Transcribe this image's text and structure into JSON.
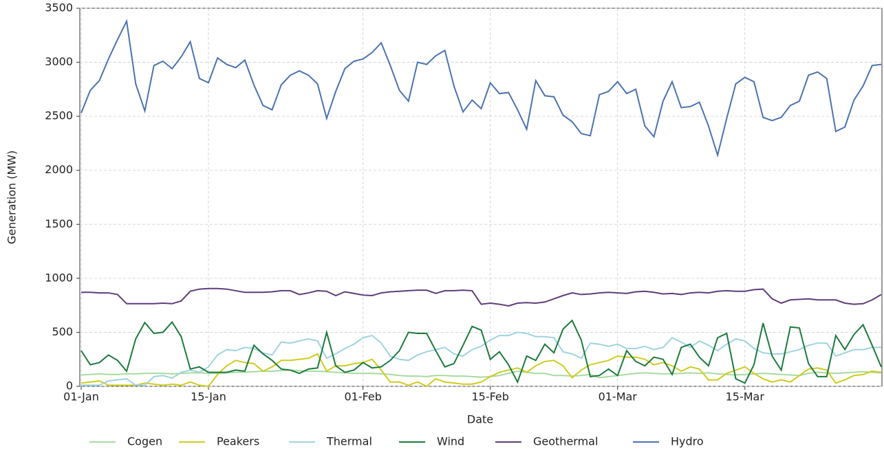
{
  "chart_data": {
    "type": "line",
    "x_label": "Date",
    "y_label": "Generation (MW)",
    "x": [
      "01-Jan",
      null,
      null,
      null,
      null,
      null,
      null,
      null,
      null,
      null,
      null,
      null,
      null,
      null,
      "15-Jan",
      null,
      null,
      null,
      null,
      null,
      null,
      null,
      null,
      null,
      null,
      null,
      null,
      null,
      null,
      null,
      null,
      "01-Feb",
      null,
      null,
      null,
      null,
      null,
      null,
      null,
      null,
      null,
      null,
      null,
      null,
      null,
      "15-Feb",
      null,
      null,
      null,
      null,
      null,
      null,
      null,
      null,
      null,
      null,
      null,
      null,
      null,
      "01-Mar",
      null,
      null,
      null,
      null,
      null,
      null,
      null,
      null,
      null,
      null,
      null,
      null,
      null,
      "15-Mar",
      null,
      null,
      null,
      null,
      null,
      null,
      null,
      null,
      null,
      null,
      null,
      null,
      null,
      null,
      null
    ],
    "ylim": [
      0,
      3500
    ],
    "yticks": [
      0,
      500,
      1000,
      1500,
      2000,
      2500,
      3000,
      3500
    ],
    "grid": true,
    "series": [
      {
        "name": "Cogen",
        "color": "#a6dba0",
        "values": [
          105,
          110,
          115,
          110,
          110,
          115,
          115,
          120,
          120,
          120,
          115,
          120,
          125,
          125,
          120,
          120,
          125,
          130,
          130,
          135,
          140,
          140,
          145,
          150,
          145,
          140,
          140,
          135,
          130,
          125,
          120,
          120,
          120,
          115,
          110,
          100,
          95,
          95,
          90,
          100,
          100,
          95,
          95,
          90,
          85,
          90,
          100,
          120,
          140,
          130,
          120,
          120,
          100,
          100,
          95,
          100,
          110,
          80,
          90,
          100,
          110,
          120,
          125,
          120,
          115,
          115,
          120,
          125,
          120,
          125,
          115,
          110,
          105,
          110,
          115,
          120,
          115,
          110,
          105,
          100,
          120,
          130,
          125,
          120,
          125,
          130,
          135,
          130,
          125
        ]
      },
      {
        "name": "Peakers",
        "color": "#cfcb1d",
        "values": [
          30,
          40,
          50,
          10,
          10,
          10,
          10,
          30,
          20,
          10,
          20,
          10,
          40,
          10,
          0,
          110,
          190,
          240,
          220,
          210,
          140,
          180,
          240,
          240,
          250,
          260,
          300,
          140,
          190,
          190,
          210,
          220,
          250,
          150,
          40,
          40,
          10,
          40,
          0,
          70,
          40,
          30,
          20,
          20,
          40,
          90,
          130,
          150,
          170,
          130,
          190,
          230,
          240,
          190,
          80,
          150,
          200,
          220,
          240,
          280,
          270,
          270,
          250,
          200,
          220,
          190,
          140,
          180,
          160,
          60,
          60,
          120,
          150,
          180,
          120,
          70,
          40,
          60,
          40,
          100,
          160,
          170,
          150,
          30,
          60,
          100,
          110,
          140,
          130
        ]
      },
      {
        "name": "Thermal",
        "color": "#9fd3df",
        "values": [
          10,
          10,
          10,
          50,
          60,
          70,
          10,
          10,
          90,
          100,
          75,
          130,
          150,
          130,
          180,
          290,
          340,
          330,
          360,
          350,
          310,
          290,
          410,
          400,
          420,
          440,
          420,
          260,
          300,
          350,
          390,
          450,
          470,
          400,
          280,
          250,
          240,
          290,
          320,
          340,
          360,
          300,
          280,
          340,
          370,
          430,
          470,
          470,
          500,
          490,
          460,
          460,
          450,
          320,
          300,
          260,
          400,
          390,
          370,
          390,
          350,
          350,
          370,
          340,
          360,
          450,
          410,
          360,
          420,
          380,
          330,
          390,
          440,
          420,
          350,
          310,
          300,
          300,
          320,
          340,
          380,
          400,
          400,
          280,
          310,
          340,
          340,
          360,
          360
        ]
      },
      {
        "name": "Wind",
        "color": "#1b7a3c",
        "values": [
          330,
          200,
          220,
          290,
          240,
          140,
          440,
          590,
          490,
          500,
          595,
          460,
          160,
          180,
          130,
          130,
          130,
          150,
          140,
          380,
          300,
          240,
          160,
          150,
          120,
          160,
          170,
          500,
          190,
          130,
          150,
          220,
          170,
          180,
          240,
          330,
          500,
          490,
          490,
          330,
          180,
          210,
          380,
          555,
          520,
          250,
          320,
          200,
          40,
          280,
          240,
          390,
          310,
          530,
          610,
          430,
          90,
          100,
          160,
          100,
          330,
          230,
          190,
          270,
          250,
          110,
          360,
          390,
          270,
          190,
          450,
          490,
          70,
          30,
          200,
          585,
          280,
          150,
          550,
          540,
          210,
          90,
          90,
          470,
          340,
          480,
          570,
          380,
          180
        ]
      },
      {
        "name": "Geothermal",
        "color": "#5e3c7a",
        "values": [
          870,
          870,
          865,
          865,
          850,
          765,
          765,
          765,
          765,
          770,
          765,
          790,
          880,
          900,
          905,
          905,
          900,
          885,
          870,
          870,
          870,
          875,
          885,
          885,
          850,
          865,
          885,
          880,
          840,
          875,
          860,
          845,
          840,
          865,
          875,
          880,
          885,
          890,
          890,
          860,
          885,
          885,
          890,
          885,
          760,
          770,
          760,
          745,
          770,
          775,
          770,
          780,
          810,
          840,
          865,
          850,
          855,
          865,
          870,
          865,
          860,
          875,
          880,
          870,
          855,
          860,
          850,
          865,
          870,
          865,
          880,
          885,
          880,
          880,
          895,
          900,
          810,
          770,
          800,
          805,
          810,
          800,
          800,
          800,
          770,
          760,
          765,
          800,
          850
        ]
      },
      {
        "name": "Hydro",
        "color": "#4a72b0",
        "values": [
          2530,
          2740,
          2830,
          3030,
          3210,
          3380,
          2800,
          2550,
          2970,
          3010,
          2940,
          3050,
          3190,
          2850,
          2810,
          3040,
          2980,
          2950,
          3020,
          2790,
          2600,
          2560,
          2790,
          2880,
          2920,
          2880,
          2800,
          2480,
          2730,
          2940,
          3010,
          3030,
          3090,
          3180,
          2970,
          2740,
          2640,
          3000,
          2980,
          3060,
          3110,
          2780,
          2540,
          2650,
          2570,
          2810,
          2710,
          2720,
          2560,
          2380,
          2830,
          2690,
          2680,
          2510,
          2450,
          2340,
          2320,
          2700,
          2730,
          2820,
          2710,
          2750,
          2410,
          2310,
          2640,
          2820,
          2580,
          2590,
          2630,
          2410,
          2140,
          2480,
          2800,
          2860,
          2820,
          2490,
          2460,
          2490,
          2600,
          2640,
          2880,
          2910,
          2850,
          2360,
          2400,
          2650,
          2780,
          2970,
          2980
        ]
      }
    ]
  }
}
